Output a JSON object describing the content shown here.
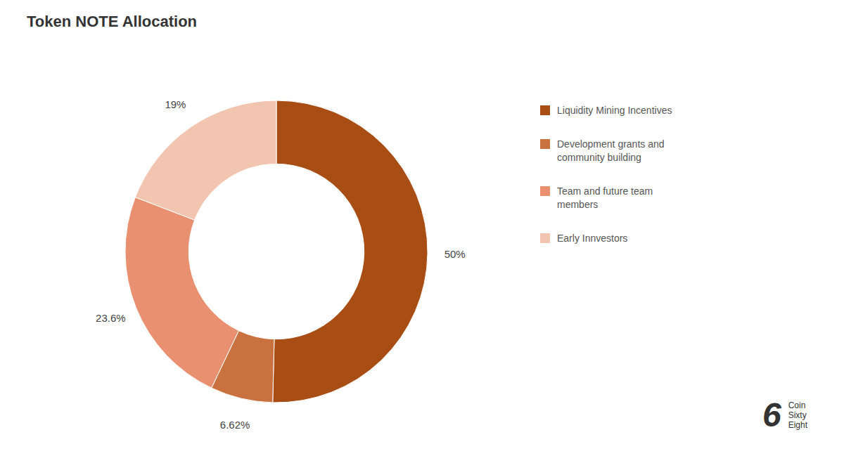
{
  "chart_data": {
    "type": "pie",
    "title": "Token NOTE Allocation",
    "categories": [
      "Liquidity Mining Incentives",
      "Development grants and\ncommunity building",
      "Team and future team\nmembers",
      "Early Innvestors"
    ],
    "values": [
      50.0,
      6.62,
      23.6,
      19.0
    ],
    "value_labels": [
      "50%",
      "6.62%",
      "23.6%",
      "19%"
    ],
    "colors": [
      "#a84e15",
      "#c97240",
      "#e89070",
      "#f2c5b0"
    ],
    "data_labels": true,
    "legend": "right",
    "annotations": [
      "6",
      "Coin",
      "Sixty",
      "Eight"
    ]
  }
}
